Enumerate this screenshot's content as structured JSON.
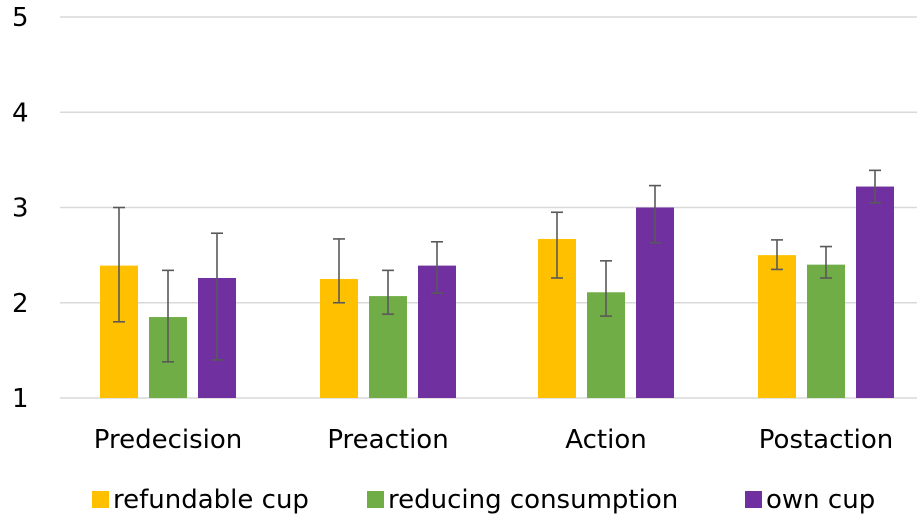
{
  "chart_data": {
    "type": "bar",
    "title": "",
    "xlabel": "",
    "ylabel": "",
    "ylim": [
      1,
      5
    ],
    "yticks": [
      1,
      2,
      3,
      4,
      5
    ],
    "grid": true,
    "legend_position": "bottom",
    "categories": [
      "Predecision",
      "Preaction",
      "Action",
      "Postaction"
    ],
    "series": [
      {
        "name": "refundable cup",
        "color": "#FFC000",
        "values": [
          2.39,
          2.25,
          2.67,
          2.5
        ],
        "error_low": [
          1.8,
          2.0,
          2.26,
          2.35
        ],
        "error_high": [
          3.0,
          2.67,
          2.95,
          2.66
        ]
      },
      {
        "name": "reducing consumption",
        "color": "#70AD47",
        "values": [
          1.85,
          2.07,
          2.11,
          2.4
        ],
        "error_low": [
          1.38,
          1.88,
          1.86,
          2.26
        ],
        "error_high": [
          2.34,
          2.34,
          2.44,
          2.59
        ]
      },
      {
        "name": "own cup",
        "color": "#7030A0",
        "values": [
          2.26,
          2.39,
          3.0,
          3.22
        ],
        "error_low": [
          1.4,
          2.1,
          2.63,
          3.05
        ],
        "error_high": [
          2.73,
          2.64,
          3.23,
          3.39
        ]
      }
    ]
  }
}
